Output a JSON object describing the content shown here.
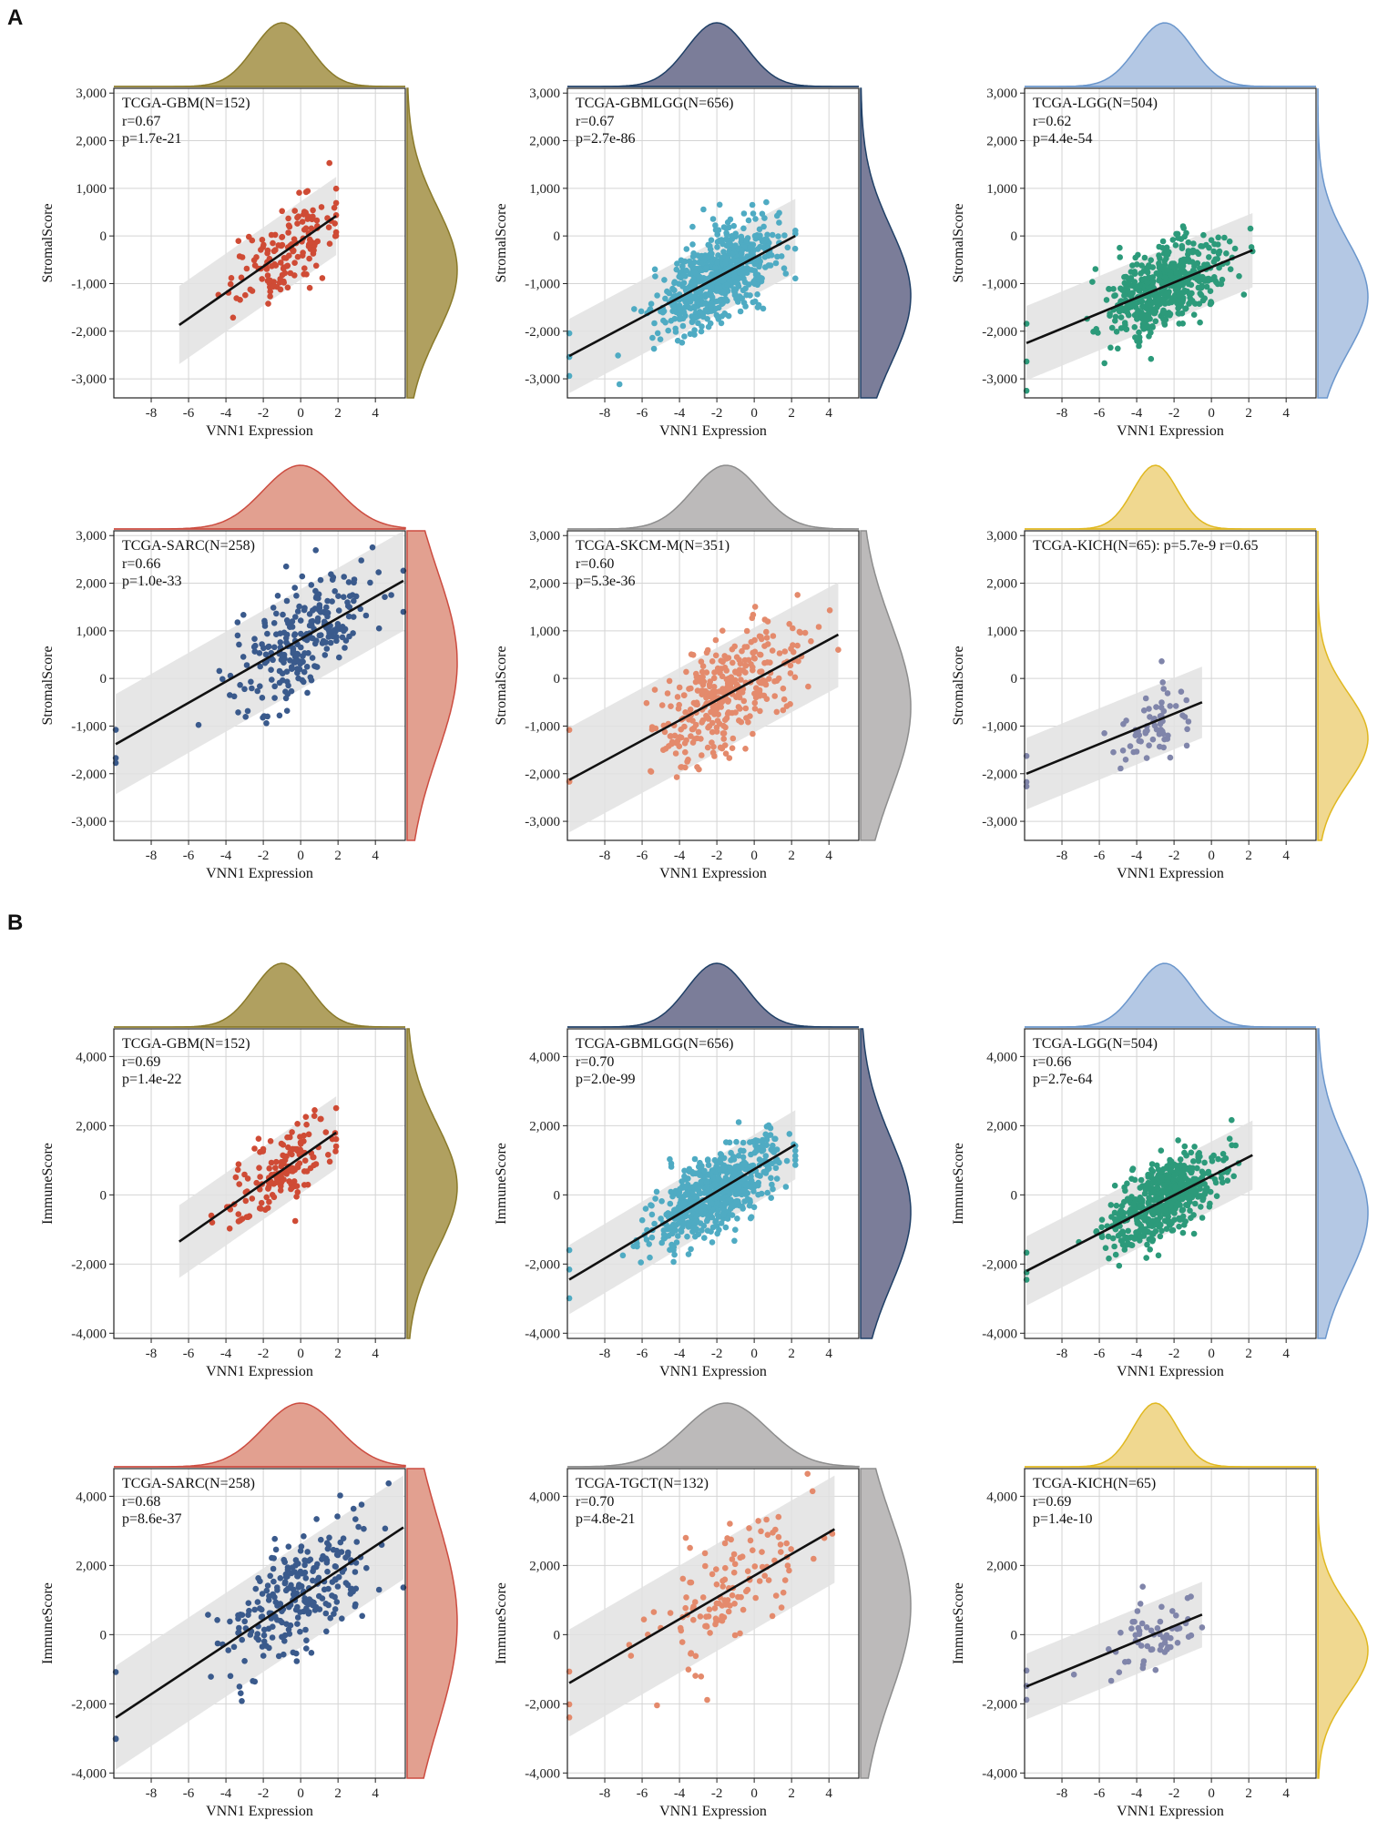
{
  "figure": {
    "section_labels": [
      "A",
      "B"
    ],
    "colors": {
      "regression_line": "#111111",
      "confidence_band": "#e2e2e2",
      "grid": "#d4d4d4",
      "axis": "#222222"
    }
  },
  "chart_data": [
    {
      "type": "scatter",
      "section": "A",
      "title": "TCGA-GBM(N=152)",
      "stats": [
        "r=0.67",
        "p=1.7e-21"
      ],
      "xlabel": "VNN1 Expression",
      "ylabel": "StromalScore",
      "xlim": [
        -10,
        5.6
      ],
      "ylim": [
        -3400,
        3100
      ],
      "xticks": [
        -8,
        -6,
        -4,
        -2,
        0,
        2,
        4
      ],
      "xtick_labels": [
        "-8",
        "-6",
        "-4",
        "-2",
        "0",
        "2",
        "4"
      ],
      "yticks": [
        -3000,
        -2000,
        -1000,
        0,
        1000,
        2000,
        3000
      ],
      "ytick_labels": [
        "-3,000",
        "-2,000",
        "-1,000",
        "0",
        "1,000",
        "2,000",
        "3,000"
      ],
      "point_color": "#cf4b35",
      "density_color": "#b0a060",
      "density_line": "#8a7a2a",
      "x_range": [
        -6.5,
        1.9
      ],
      "line_y": [
        -1870,
        420
      ],
      "band_halfwidth": 820,
      "n_points": 152,
      "x_center": -1.0,
      "x_sd": 1.5,
      "r": 0.67
    },
    {
      "type": "scatter",
      "section": "A",
      "title": "TCGA-GBMLGG(N=656)",
      "stats": [
        "r=0.67",
        "p=2.7e-86"
      ],
      "xlabel": "VNN1 Expression",
      "ylabel": "StromalScore",
      "xlim": [
        -10,
        5.6
      ],
      "ylim": [
        -3400,
        3100
      ],
      "xticks": [
        -8,
        -6,
        -4,
        -2,
        0,
        2,
        4
      ],
      "xtick_labels": [
        "-8",
        "-6",
        "-4",
        "-2",
        "0",
        "2",
        "4"
      ],
      "yticks": [
        -3000,
        -2000,
        -1000,
        0,
        1000,
        2000,
        3000
      ],
      "ytick_labels": [
        "-3,000",
        "-2,000",
        "-1,000",
        "0",
        "1,000",
        "2,000",
        "3,000"
      ],
      "point_color": "#4fabc3",
      "density_color": "#7b7d99",
      "density_line": "#1f3f66",
      "x_range": [
        -9.9,
        2.2
      ],
      "line_y": [
        -2520,
        0
      ],
      "band_halfwidth": 780,
      "n_points": 656,
      "x_center": -2.0,
      "x_sd": 1.6,
      "r": 0.67
    },
    {
      "type": "scatter",
      "section": "A",
      "title": "TCGA-LGG(N=504)",
      "stats": [
        "r=0.62",
        "p=4.4e-54"
      ],
      "xlabel": "VNN1 Expression",
      "ylabel": "StromalScore",
      "xlim": [
        -10,
        5.6
      ],
      "ylim": [
        -3400,
        3100
      ],
      "xticks": [
        -8,
        -6,
        -4,
        -2,
        0,
        2,
        4
      ],
      "xtick_labels": [
        "-8",
        "-6",
        "-4",
        "-2",
        "0",
        "2",
        "4"
      ],
      "yticks": [
        -3000,
        -2000,
        -1000,
        0,
        1000,
        2000,
        3000
      ],
      "ytick_labels": [
        "-3,000",
        "-2,000",
        "-1,000",
        "0",
        "1,000",
        "2,000",
        "3,000"
      ],
      "point_color": "#2c9a7a",
      "density_color": "#b4c8e4",
      "density_line": "#6a96cc",
      "x_range": [
        -9.9,
        2.2
      ],
      "line_y": [
        -2250,
        -300
      ],
      "band_halfwidth": 780,
      "n_points": 504,
      "x_center": -2.5,
      "x_sd": 1.5,
      "r": 0.62
    },
    {
      "type": "scatter",
      "section": "A",
      "title": "TCGA-SARC(N=258)",
      "stats": [
        "r=0.66",
        "p=1.0e-33"
      ],
      "xlabel": "VNN1 Expression",
      "ylabel": "StromalScore",
      "xlim": [
        -10,
        5.6
      ],
      "ylim": [
        -3400,
        3100
      ],
      "xticks": [
        -8,
        -6,
        -4,
        -2,
        0,
        2,
        4
      ],
      "xtick_labels": [
        "-8",
        "-6",
        "-4",
        "-2",
        "0",
        "2",
        "4"
      ],
      "yticks": [
        -3000,
        -2000,
        -1000,
        0,
        1000,
        2000,
        3000
      ],
      "ytick_labels": [
        "-3,000",
        "-2,000",
        "-1,000",
        "0",
        "1,000",
        "2,000",
        "3,000"
      ],
      "point_color": "#3a5a8c",
      "density_color": "#e2a090",
      "density_line": "#cc4c40",
      "x_range": [
        -9.9,
        5.5
      ],
      "line_y": [
        -1380,
        2050
      ],
      "band_halfwidth": 1050,
      "n_points": 258,
      "x_center": 0.0,
      "x_sd": 2.0,
      "r": 0.66
    },
    {
      "type": "scatter",
      "section": "A",
      "title": "TCGA-SKCM-M(N=351)",
      "stats": [
        "r=0.60",
        "p=5.3e-36"
      ],
      "xlabel": "VNN1 Expression",
      "ylabel": "StromalScore",
      "xlim": [
        -10,
        5.6
      ],
      "ylim": [
        -3400,
        3100
      ],
      "xticks": [
        -8,
        -6,
        -4,
        -2,
        0,
        2,
        4
      ],
      "xtick_labels": [
        "-8",
        "-6",
        "-4",
        "-2",
        "0",
        "2",
        "4"
      ],
      "yticks": [
        -3000,
        -2000,
        -1000,
        0,
        1000,
        2000,
        3000
      ],
      "ytick_labels": [
        "-3,000",
        "-2,000",
        "-1,000",
        "0",
        "1,000",
        "2,000",
        "3,000"
      ],
      "point_color": "#e48a6c",
      "density_color": "#bcbaba",
      "density_line": "#8d8d8d",
      "x_range": [
        -9.9,
        4.5
      ],
      "line_y": [
        -2130,
        920
      ],
      "band_halfwidth": 1100,
      "n_points": 351,
      "x_center": -1.5,
      "x_sd": 1.8,
      "r": 0.6
    },
    {
      "type": "scatter",
      "section": "A",
      "title": "TCGA-KICH(N=65): p=5.7e-9 r=0.65",
      "stats": [],
      "xlabel": "VNN1 Expression",
      "ylabel": "StromalScore",
      "xlim": [
        -10,
        5.6
      ],
      "ylim": [
        -3400,
        3100
      ],
      "xticks": [
        -8,
        -6,
        -4,
        -2,
        0,
        2,
        4
      ],
      "xtick_labels": [
        "-8",
        "-6",
        "-4",
        "-2",
        "0",
        "2",
        "4"
      ],
      "yticks": [
        -3000,
        -2000,
        -1000,
        0,
        1000,
        2000,
        3000
      ],
      "ytick_labels": [
        "-3,000",
        "-2,000",
        "-1,000",
        "0",
        "1,000",
        "2,000",
        "3,000"
      ],
      "point_color": "#8085aa",
      "density_color": "#f0d890",
      "density_line": "#e0b820",
      "x_range": [
        -9.9,
        -0.5
      ],
      "line_y": [
        -2000,
        -500
      ],
      "band_halfwidth": 750,
      "n_points": 65,
      "x_center": -3.0,
      "x_sd": 1.2,
      "r": 0.65
    },
    {
      "type": "scatter",
      "section": "B",
      "title": "TCGA-GBM(N=152)",
      "stats": [
        "r=0.69",
        "p=1.4e-22"
      ],
      "xlabel": "VNN1 Expression",
      "ylabel": "ImmuneScore",
      "xlim": [
        -10,
        5.6
      ],
      "ylim": [
        -4150,
        4800
      ],
      "xticks": [
        -8,
        -6,
        -4,
        -2,
        0,
        2,
        4
      ],
      "xtick_labels": [
        "-8",
        "-6",
        "-4",
        "-2",
        "0",
        "2",
        "4"
      ],
      "yticks": [
        -4000,
        -2000,
        0,
        2000,
        4000
      ],
      "ytick_labels": [
        "-4,000",
        "-2,000",
        "0",
        "2,000",
        "4,000"
      ],
      "point_color": "#cf4b35",
      "density_color": "#b0a060",
      "density_line": "#8a7a2a",
      "x_range": [
        -6.5,
        1.9
      ],
      "line_y": [
        -1350,
        1800
      ],
      "band_halfwidth": 1050,
      "n_points": 152,
      "x_center": -1.0,
      "x_sd": 1.5,
      "r": 0.69
    },
    {
      "type": "scatter",
      "section": "B",
      "title": "TCGA-GBMLGG(N=656)",
      "stats": [
        "r=0.70",
        "p=2.0e-99"
      ],
      "xlabel": "VNN1 Expression",
      "ylabel": "ImmuneScore",
      "xlim": [
        -10,
        5.6
      ],
      "ylim": [
        -4150,
        4800
      ],
      "xticks": [
        -8,
        -6,
        -4,
        -2,
        0,
        2,
        4
      ],
      "xtick_labels": [
        "-8",
        "-6",
        "-4",
        "-2",
        "0",
        "2",
        "4"
      ],
      "yticks": [
        -4000,
        -2000,
        0,
        2000,
        4000
      ],
      "ytick_labels": [
        "-4,000",
        "-2,000",
        "0",
        "2,000",
        "4,000"
      ],
      "point_color": "#4fabc3",
      "density_color": "#7b7d99",
      "density_line": "#1f3f66",
      "x_range": [
        -9.9,
        2.2
      ],
      "line_y": [
        -2450,
        1450
      ],
      "band_halfwidth": 1000,
      "n_points": 656,
      "x_center": -2.0,
      "x_sd": 1.6,
      "r": 0.7
    },
    {
      "type": "scatter",
      "section": "B",
      "title": "TCGA-LGG(N=504)",
      "stats": [
        "r=0.66",
        "p=2.7e-64"
      ],
      "xlabel": "VNN1 Expression",
      "ylabel": "ImmuneScore",
      "xlim": [
        -10,
        5.6
      ],
      "ylim": [
        -4150,
        4800
      ],
      "xticks": [
        -8,
        -6,
        -4,
        -2,
        0,
        2,
        4
      ],
      "xtick_labels": [
        "-8",
        "-6",
        "-4",
        "-2",
        "0",
        "2",
        "4"
      ],
      "yticks": [
        -4000,
        -2000,
        0,
        2000,
        4000
      ],
      "ytick_labels": [
        "-4,000",
        "-2,000",
        "0",
        "2,000",
        "4,000"
      ],
      "point_color": "#2c9a7a",
      "density_color": "#b4c8e4",
      "density_line": "#6a96cc",
      "x_range": [
        -9.9,
        2.2
      ],
      "line_y": [
        -2200,
        1150
      ],
      "band_halfwidth": 1000,
      "n_points": 504,
      "x_center": -2.5,
      "x_sd": 1.5,
      "r": 0.66
    },
    {
      "type": "scatter",
      "section": "B",
      "title": "TCGA-SARC(N=258)",
      "stats": [
        "r=0.68",
        "p=8.6e-37"
      ],
      "xlabel": "VNN1 Expression",
      "ylabel": "ImmuneScore",
      "xlim": [
        -10,
        5.6
      ],
      "ylim": [
        -4150,
        4800
      ],
      "xticks": [
        -8,
        -6,
        -4,
        -2,
        0,
        2,
        4
      ],
      "xtick_labels": [
        "-8",
        "-6",
        "-4",
        "-2",
        "0",
        "2",
        "4"
      ],
      "yticks": [
        -4000,
        -2000,
        0,
        2000,
        4000
      ],
      "ytick_labels": [
        "-4,000",
        "-2,000",
        "0",
        "2,000",
        "4,000"
      ],
      "point_color": "#3a5a8c",
      "density_color": "#e2a090",
      "density_line": "#cc4c40",
      "x_range": [
        -9.9,
        5.5
      ],
      "line_y": [
        -2400,
        3100
      ],
      "band_halfwidth": 1500,
      "n_points": 258,
      "x_center": 0.0,
      "x_sd": 2.0,
      "r": 0.68
    },
    {
      "type": "scatter",
      "section": "B",
      "title": "TCGA-TGCT(N=132)",
      "stats": [
        "r=0.70",
        "p=4.8e-21"
      ],
      "xlabel": "VNN1 Expression",
      "ylabel": "ImmuneScore",
      "xlim": [
        -10,
        5.6
      ],
      "ylim": [
        -4150,
        4800
      ],
      "xticks": [
        -8,
        -6,
        -4,
        -2,
        0,
        2,
        4
      ],
      "xtick_labels": [
        "-8",
        "-6",
        "-4",
        "-2",
        "0",
        "2",
        "4"
      ],
      "yticks": [
        -4000,
        -2000,
        0,
        2000,
        4000
      ],
      "ytick_labels": [
        "-4,000",
        "-2,000",
        "0",
        "2,000",
        "4,000"
      ],
      "point_color": "#e48a6c",
      "density_color": "#bcbaba",
      "density_line": "#8d8d8d",
      "x_range": [
        -9.9,
        4.3
      ],
      "line_y": [
        -1400,
        3050
      ],
      "band_halfwidth": 1550,
      "n_points": 132,
      "x_center": -1.5,
      "x_sd": 2.2,
      "r": 0.7
    },
    {
      "type": "scatter",
      "section": "B",
      "title": "TCGA-KICH(N=65)",
      "stats": [
        "r=0.69",
        "p=1.4e-10"
      ],
      "xlabel": "VNN1 Expression",
      "ylabel": "ImmuneScore",
      "xlim": [
        -10,
        5.6
      ],
      "ylim": [
        -4150,
        4800
      ],
      "xticks": [
        -8,
        -6,
        -4,
        -2,
        0,
        2,
        4
      ],
      "xtick_labels": [
        "-8",
        "-6",
        "-4",
        "-2",
        "0",
        "2",
        "4"
      ],
      "yticks": [
        -4000,
        -2000,
        0,
        2000,
        4000
      ],
      "ytick_labels": [
        "-4,000",
        "-2,000",
        "0",
        "2,000",
        "4,000"
      ],
      "point_color": "#8085aa",
      "density_color": "#f0d890",
      "density_line": "#e0b820",
      "x_range": [
        -9.9,
        -0.5
      ],
      "line_y": [
        -1500,
        580
      ],
      "band_halfwidth": 950,
      "n_points": 65,
      "x_center": -3.0,
      "x_sd": 1.2,
      "r": 0.69
    }
  ]
}
